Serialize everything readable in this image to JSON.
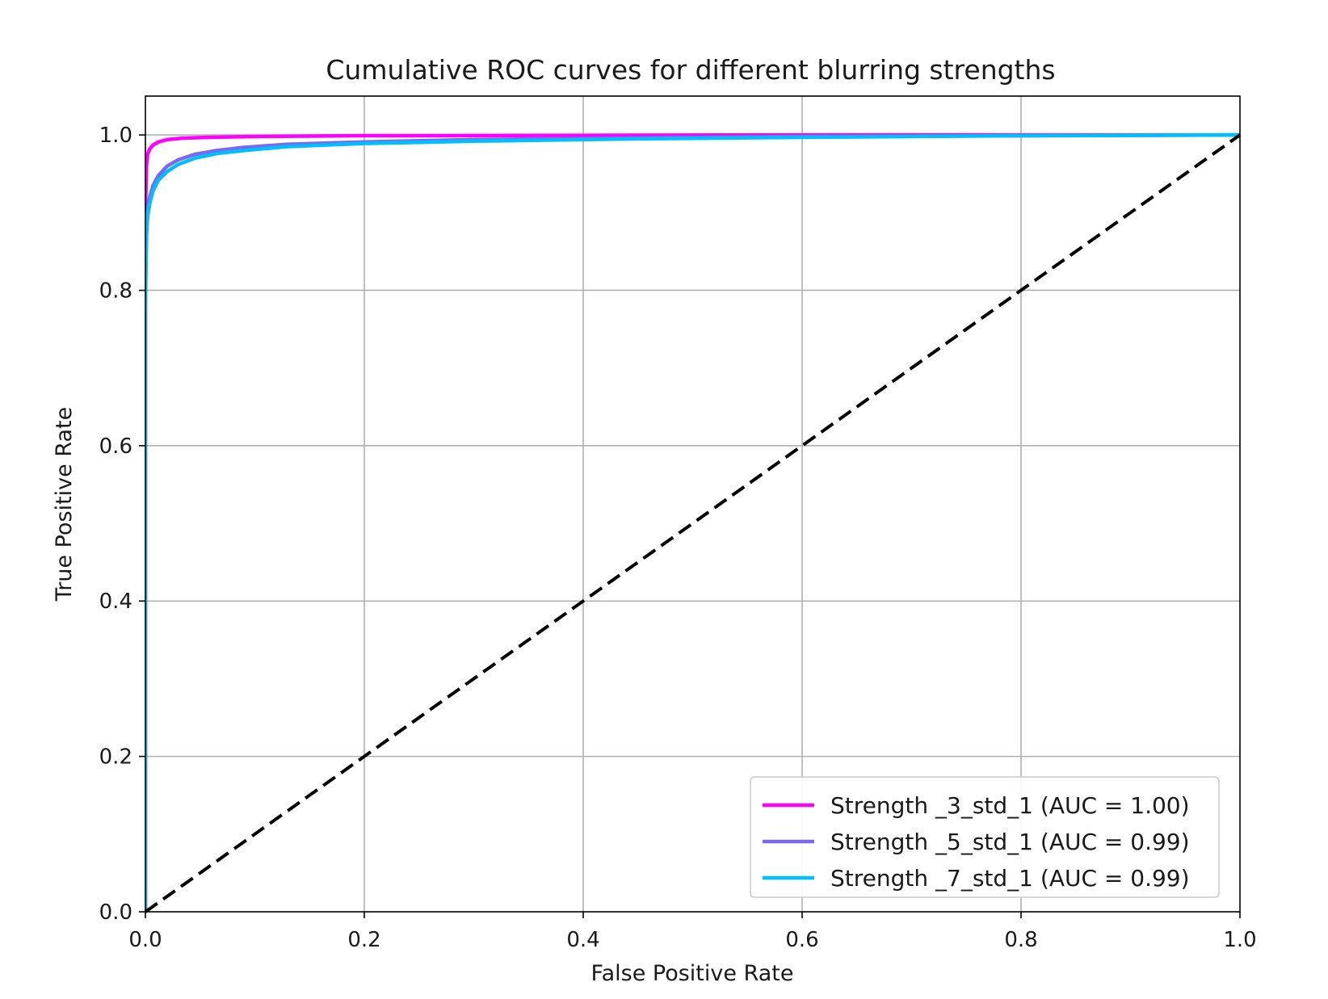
{
  "chart_data": {
    "type": "line",
    "title": "Cumulative ROC curves for different blurring strengths",
    "xlabel": "False Positive Rate",
    "ylabel": "True Positive Rate",
    "xlim": [
      0.0,
      1.0
    ],
    "ylim": [
      0.0,
      1.05
    ],
    "xticks": [
      0.0,
      0.2,
      0.4,
      0.6,
      0.8,
      1.0
    ],
    "yticks": [
      0.0,
      0.2,
      0.4,
      0.6,
      0.8,
      1.0
    ],
    "xtick_labels": [
      "0.0",
      "0.2",
      "0.4",
      "0.6",
      "0.8",
      "1.0"
    ],
    "ytick_labels": [
      "0.0",
      "0.2",
      "0.4",
      "0.6",
      "0.8",
      "1.0"
    ],
    "grid": true,
    "legend_position": "lower-right",
    "series": [
      {
        "name": "Strength _3_std_1 (AUC = 1.00)",
        "color": "#ff00ff",
        "x": [
          0.0,
          0.0,
          0.001,
          0.002,
          0.004,
          0.007,
          0.012,
          0.02,
          0.035,
          0.06,
          0.1,
          0.2,
          0.4,
          0.6,
          0.8,
          1.0
        ],
        "y": [
          0.0,
          0.9,
          0.96,
          0.975,
          0.982,
          0.987,
          0.991,
          0.994,
          0.996,
          0.997,
          0.998,
          0.999,
          0.9995,
          1.0,
          1.0,
          1.0
        ]
      },
      {
        "name": "Strength _5_std_1 (AUC = 0.99)",
        "color": "#7b68ee",
        "x": [
          0.0,
          0.0,
          0.001,
          0.002,
          0.004,
          0.007,
          0.012,
          0.02,
          0.03,
          0.045,
          0.065,
          0.09,
          0.13,
          0.2,
          0.3,
          0.45,
          0.6,
          0.8,
          1.0
        ],
        "y": [
          0.0,
          0.8,
          0.88,
          0.905,
          0.92,
          0.935,
          0.948,
          0.96,
          0.968,
          0.975,
          0.98,
          0.984,
          0.988,
          0.991,
          0.994,
          0.996,
          0.998,
          0.999,
          1.0
        ]
      },
      {
        "name": "Strength _7_std_1 (AUC = 0.99)",
        "color": "#00bfff",
        "x": [
          0.0,
          0.0,
          0.001,
          0.002,
          0.004,
          0.007,
          0.012,
          0.02,
          0.03,
          0.045,
          0.065,
          0.09,
          0.13,
          0.2,
          0.3,
          0.45,
          0.6,
          0.8,
          1.0
        ],
        "y": [
          0.0,
          0.78,
          0.87,
          0.895,
          0.912,
          0.928,
          0.942,
          0.953,
          0.962,
          0.97,
          0.976,
          0.98,
          0.985,
          0.989,
          0.992,
          0.995,
          0.997,
          0.999,
          1.0
        ]
      }
    ],
    "reference_line": {
      "name": "chance",
      "color": "#000000",
      "style": "dashed",
      "x": [
        0.0,
        1.0
      ],
      "y": [
        0.0,
        1.0
      ]
    }
  }
}
